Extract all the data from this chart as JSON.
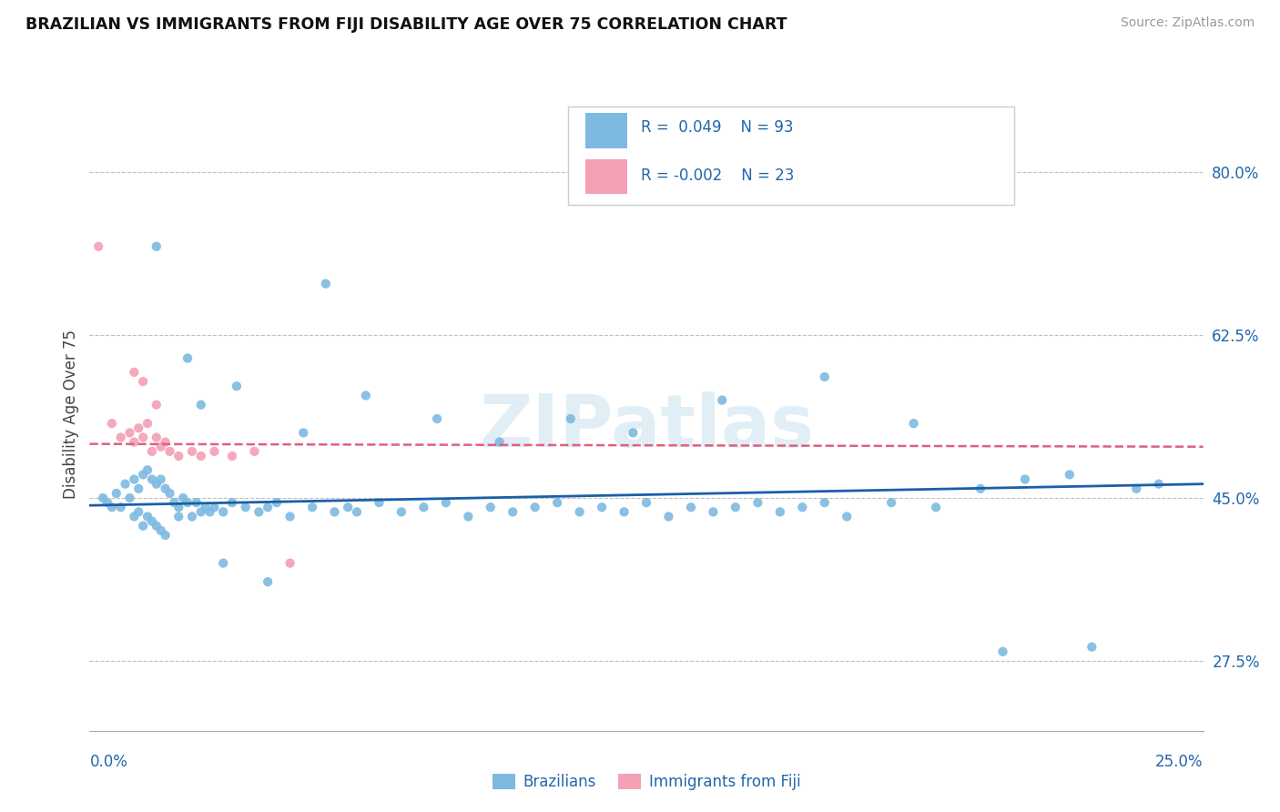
{
  "title": "BRAZILIAN VS IMMIGRANTS FROM FIJI DISABILITY AGE OVER 75 CORRELATION CHART",
  "source": "Source: ZipAtlas.com",
  "ylabel": "Disability Age Over 75",
  "xmin": 0.0,
  "xmax": 25.0,
  "ymin": 20.0,
  "ymax": 88.0,
  "yticks": [
    27.5,
    45.0,
    62.5,
    80.0
  ],
  "ytick_labels": [
    "27.5%",
    "45.0%",
    "62.5%",
    "80.0%"
  ],
  "hgrid_vals": [
    27.5,
    45.0,
    62.5,
    80.0
  ],
  "brazilians_color": "#7db9e0",
  "fiji_color": "#f4a0b5",
  "trendline_brazil_color": "#1a5fa8",
  "trendline_fiji_color": "#e06080",
  "legend_R_brazil": "R =  0.049",
  "legend_N_brazil": "N = 93",
  "legend_R_fiji": "R = -0.002",
  "legend_N_fiji": "N = 23",
  "watermark": "ZIPatlas",
  "brazilians_x": [
    0.3,
    0.4,
    0.5,
    0.6,
    0.7,
    0.8,
    0.9,
    1.0,
    1.0,
    1.1,
    1.1,
    1.2,
    1.2,
    1.3,
    1.3,
    1.4,
    1.4,
    1.5,
    1.5,
    1.6,
    1.6,
    1.7,
    1.7,
    1.8,
    1.9,
    2.0,
    2.0,
    2.1,
    2.2,
    2.3,
    2.4,
    2.5,
    2.6,
    2.7,
    2.8,
    3.0,
    3.2,
    3.5,
    3.8,
    4.0,
    4.2,
    4.5,
    5.0,
    5.5,
    5.8,
    6.0,
    6.5,
    7.0,
    7.5,
    8.0,
    8.5,
    9.0,
    9.5,
    10.0,
    10.5,
    11.0,
    11.5,
    12.0,
    12.5,
    13.0,
    13.5,
    14.0,
    14.5,
    15.0,
    15.5,
    16.0,
    16.5,
    17.0,
    18.0,
    19.0,
    20.0,
    21.0,
    22.0,
    23.5,
    24.0,
    2.5,
    3.3,
    4.8,
    6.2,
    7.8,
    9.2,
    10.8,
    12.2,
    14.2,
    16.5,
    18.5,
    20.5,
    22.5,
    1.5,
    2.2,
    3.0,
    4.0,
    5.3
  ],
  "brazilians_y": [
    45.0,
    44.5,
    44.0,
    45.5,
    44.0,
    46.5,
    45.0,
    47.0,
    43.0,
    46.0,
    43.5,
    47.5,
    42.0,
    48.0,
    43.0,
    47.0,
    42.5,
    46.5,
    42.0,
    47.0,
    41.5,
    46.0,
    41.0,
    45.5,
    44.5,
    44.0,
    43.0,
    45.0,
    44.5,
    43.0,
    44.5,
    43.5,
    44.0,
    43.5,
    44.0,
    43.5,
    44.5,
    44.0,
    43.5,
    44.0,
    44.5,
    43.0,
    44.0,
    43.5,
    44.0,
    43.5,
    44.5,
    43.5,
    44.0,
    44.5,
    43.0,
    44.0,
    43.5,
    44.0,
    44.5,
    43.5,
    44.0,
    43.5,
    44.5,
    43.0,
    44.0,
    43.5,
    44.0,
    44.5,
    43.5,
    44.0,
    44.5,
    43.0,
    44.5,
    44.0,
    46.0,
    47.0,
    47.5,
    46.0,
    46.5,
    55.0,
    57.0,
    52.0,
    56.0,
    53.5,
    51.0,
    53.5,
    52.0,
    55.5,
    58.0,
    53.0,
    28.5,
    29.0,
    72.0,
    60.0,
    38.0,
    36.0,
    68.0
  ],
  "fiji_x": [
    0.2,
    0.5,
    0.7,
    0.9,
    1.0,
    1.1,
    1.2,
    1.3,
    1.4,
    1.5,
    1.6,
    1.7,
    1.8,
    2.0,
    2.3,
    2.5,
    2.8,
    3.2,
    3.7,
    4.5,
    1.0,
    1.2,
    1.5
  ],
  "fiji_y": [
    72.0,
    53.0,
    51.5,
    52.0,
    51.0,
    52.5,
    51.5,
    53.0,
    50.0,
    51.5,
    50.5,
    51.0,
    50.0,
    49.5,
    50.0,
    49.5,
    50.0,
    49.5,
    50.0,
    38.0,
    58.5,
    57.5,
    55.0
  ]
}
